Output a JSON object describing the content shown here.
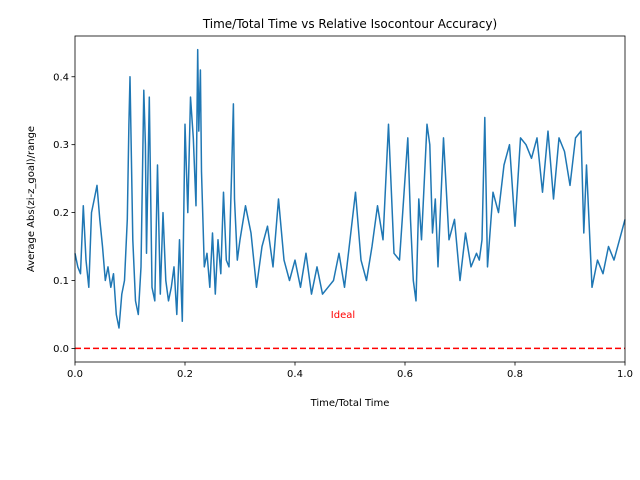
{
  "chart_data": {
    "type": "line",
    "title": "Time/Total Time vs Relative Isocontour Accuracy)",
    "xlabel": "Time/Total Time",
    "ylabel": "Average Abs(zi-z_goal)/range",
    "xlim": [
      0.0,
      1.0
    ],
    "ylim": [
      -0.02,
      0.46
    ],
    "xticks": [
      0.0,
      0.2,
      0.4,
      0.6,
      0.8,
      1.0
    ],
    "xtick_labels": [
      "0.0",
      "0.2",
      "0.4",
      "0.6",
      "0.8",
      "1.0"
    ],
    "yticks": [
      0.0,
      0.1,
      0.2,
      0.3,
      0.4
    ],
    "ytick_labels": [
      "0.0",
      "0.1",
      "0.2",
      "0.3",
      "0.4"
    ],
    "grid": false,
    "series": [
      {
        "color": "#1f77b4",
        "x": [
          0.0,
          0.005,
          0.01,
          0.015,
          0.02,
          0.025,
          0.03,
          0.035,
          0.04,
          0.045,
          0.05,
          0.055,
          0.06,
          0.065,
          0.07,
          0.075,
          0.08,
          0.085,
          0.09,
          0.095,
          0.098,
          0.1,
          0.105,
          0.11,
          0.115,
          0.12,
          0.125,
          0.128,
          0.13,
          0.135,
          0.14,
          0.145,
          0.15,
          0.155,
          0.16,
          0.165,
          0.17,
          0.175,
          0.18,
          0.185,
          0.19,
          0.195,
          0.2,
          0.205,
          0.21,
          0.215,
          0.22,
          0.223,
          0.225,
          0.228,
          0.23,
          0.235,
          0.24,
          0.245,
          0.25,
          0.255,
          0.26,
          0.265,
          0.27,
          0.275,
          0.28,
          0.285,
          0.288,
          0.29,
          0.295,
          0.3,
          0.31,
          0.32,
          0.33,
          0.34,
          0.35,
          0.36,
          0.37,
          0.38,
          0.39,
          0.4,
          0.41,
          0.42,
          0.43,
          0.44,
          0.45,
          0.46,
          0.47,
          0.48,
          0.49,
          0.5,
          0.51,
          0.52,
          0.53,
          0.54,
          0.55,
          0.56,
          0.57,
          0.58,
          0.59,
          0.6,
          0.605,
          0.61,
          0.615,
          0.62,
          0.625,
          0.63,
          0.64,
          0.645,
          0.65,
          0.655,
          0.66,
          0.67,
          0.68,
          0.69,
          0.7,
          0.71,
          0.72,
          0.73,
          0.735,
          0.74,
          0.745,
          0.75,
          0.76,
          0.77,
          0.78,
          0.79,
          0.8,
          0.81,
          0.82,
          0.83,
          0.84,
          0.85,
          0.86,
          0.87,
          0.88,
          0.89,
          0.9,
          0.91,
          0.92,
          0.925,
          0.93,
          0.94,
          0.95,
          0.96,
          0.97,
          0.98,
          0.99,
          1.0
        ],
        "values": [
          0.14,
          0.12,
          0.11,
          0.21,
          0.13,
          0.09,
          0.2,
          0.22,
          0.24,
          0.19,
          0.15,
          0.1,
          0.12,
          0.09,
          0.11,
          0.05,
          0.03,
          0.08,
          0.1,
          0.19,
          0.33,
          0.4,
          0.16,
          0.07,
          0.05,
          0.12,
          0.38,
          0.3,
          0.14,
          0.37,
          0.09,
          0.07,
          0.27,
          0.08,
          0.2,
          0.1,
          0.07,
          0.09,
          0.12,
          0.05,
          0.16,
          0.04,
          0.33,
          0.2,
          0.37,
          0.31,
          0.21,
          0.44,
          0.32,
          0.41,
          0.26,
          0.12,
          0.14,
          0.09,
          0.17,
          0.08,
          0.16,
          0.11,
          0.23,
          0.13,
          0.12,
          0.27,
          0.36,
          0.22,
          0.13,
          0.16,
          0.21,
          0.17,
          0.09,
          0.15,
          0.18,
          0.12,
          0.22,
          0.13,
          0.1,
          0.13,
          0.09,
          0.14,
          0.08,
          0.12,
          0.08,
          0.09,
          0.1,
          0.14,
          0.09,
          0.16,
          0.23,
          0.13,
          0.1,
          0.15,
          0.21,
          0.16,
          0.33,
          0.14,
          0.13,
          0.25,
          0.31,
          0.19,
          0.1,
          0.07,
          0.22,
          0.16,
          0.33,
          0.3,
          0.17,
          0.22,
          0.12,
          0.31,
          0.16,
          0.19,
          0.1,
          0.17,
          0.12,
          0.14,
          0.13,
          0.16,
          0.34,
          0.12,
          0.23,
          0.2,
          0.27,
          0.3,
          0.18,
          0.31,
          0.3,
          0.28,
          0.31,
          0.23,
          0.32,
          0.22,
          0.31,
          0.29,
          0.24,
          0.31,
          0.32,
          0.17,
          0.27,
          0.09,
          0.13,
          0.11,
          0.15,
          0.13,
          0.16,
          0.19
        ]
      },
      {
        "style": "dashed",
        "color": "#ff0000",
        "x": [
          0.0,
          1.0
        ],
        "values": [
          0.0,
          0.0
        ]
      }
    ],
    "annotations": [
      {
        "text": "Ideal",
        "x": 0.465,
        "y": 0.045,
        "color": "#ff0000"
      }
    ]
  }
}
